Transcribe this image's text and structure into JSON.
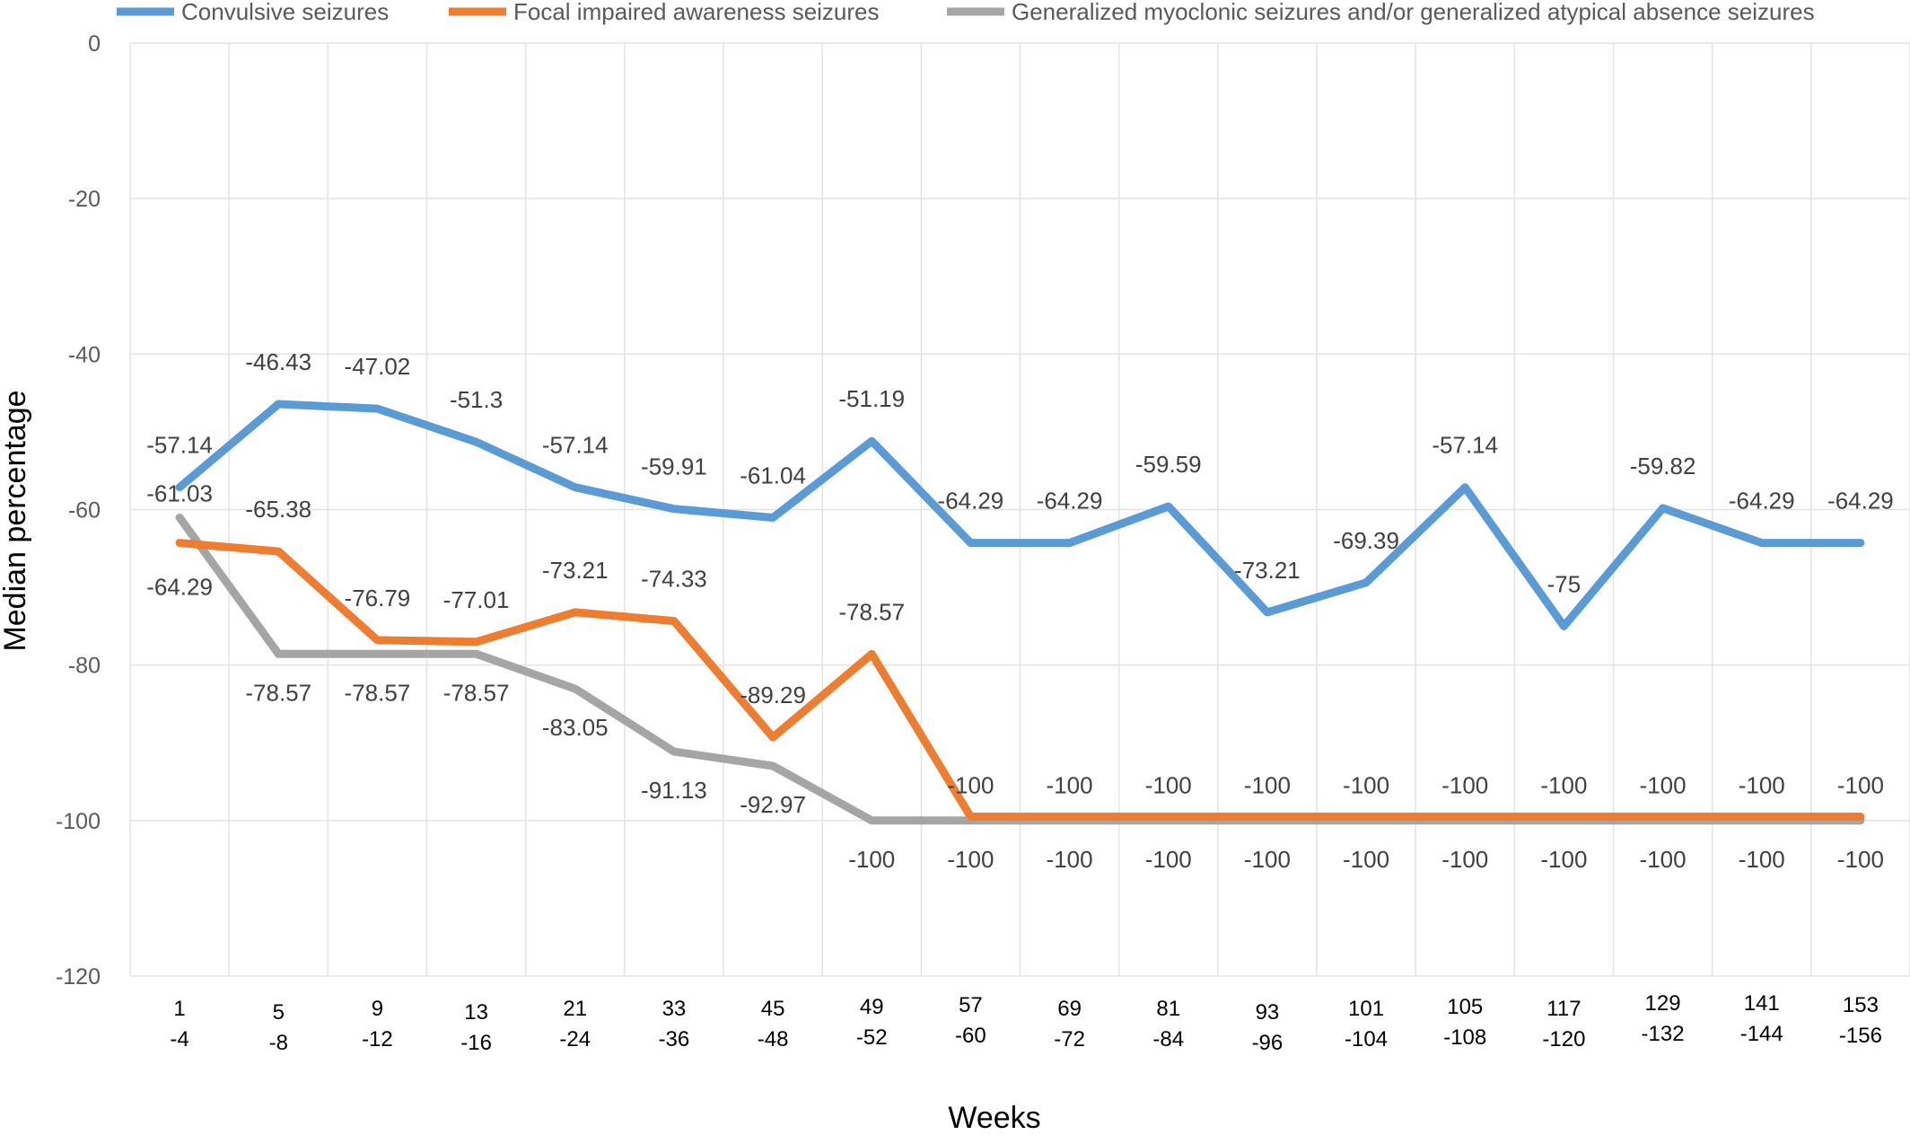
{
  "chart_data": {
    "type": "line",
    "xlabel": "Weeks",
    "ylabel": "Median percentage",
    "ylim": [
      -120,
      0
    ],
    "yticks": [
      0,
      -20,
      -40,
      -60,
      -80,
      -100,
      -120
    ],
    "grid": true,
    "legend_position": "top",
    "categories": [
      [
        "1",
        "-4"
      ],
      [
        "5",
        "-8"
      ],
      [
        "9",
        "-12"
      ],
      [
        "13",
        "-16"
      ],
      [
        "21",
        "-24"
      ],
      [
        "33",
        "-36"
      ],
      [
        "45",
        "-48"
      ],
      [
        "49",
        "-52"
      ],
      [
        "57",
        "-60"
      ],
      [
        "69",
        "-72"
      ],
      [
        "81",
        "-84"
      ],
      [
        "93",
        "-96"
      ],
      [
        "101",
        "-104"
      ],
      [
        "105",
        "-108"
      ],
      [
        "117",
        "-120"
      ],
      [
        "129",
        "-132"
      ],
      [
        "141",
        "-144"
      ],
      [
        "153",
        "-156"
      ]
    ],
    "series": [
      {
        "name": "Convulsive seizures",
        "color": "#5B9BD5",
        "values": [
          -57.14,
          -46.43,
          -47.02,
          -51.3,
          -57.14,
          -59.91,
          -61.04,
          -51.19,
          -64.29,
          -64.29,
          -59.59,
          -73.21,
          -69.39,
          -57.14,
          -75,
          -59.82,
          -64.29,
          -64.29
        ],
        "labels": [
          "-57.14",
          "-46.43",
          "-47.02",
          "-51.3",
          "-57.14",
          "-59.91",
          "-61.04",
          "-51.19",
          "-64.29",
          "-64.29",
          "-59.59",
          "-73.21",
          "-69.39",
          "-57.14",
          "-75",
          "-59.82",
          "-64.29",
          "-64.29"
        ]
      },
      {
        "name": "Focal impaired awareness seizures",
        "color": "#ED7D31",
        "values": [
          -64.29,
          -65.38,
          -76.79,
          -77.01,
          -73.21,
          -74.33,
          -89.29,
          -78.57,
          -99.5,
          -99.5,
          -99.5,
          -99.5,
          -99.5,
          -99.5,
          -99.5,
          -99.5,
          -99.5,
          -99.5
        ],
        "labels": [
          "-64.29",
          "-65.38",
          "-76.79",
          "-77.01",
          "-73.21",
          "-74.33",
          "-89.29",
          "-78.57",
          "-100",
          "-100",
          "-100",
          "-100",
          "-100",
          "-100",
          "-100",
          "-100",
          "-100",
          "-100"
        ]
      },
      {
        "name": "Generalized myoclonic seizures and/or generalized atypical absence seizures",
        "color": "#A5A5A5",
        "values": [
          -61.03,
          -78.57,
          -78.57,
          -78.57,
          -83.05,
          -91.13,
          -92.97,
          -100,
          -100,
          -100,
          -100,
          -100,
          -100,
          -100,
          -100,
          -100,
          -100,
          -100
        ],
        "labels": [
          "-61.03",
          "-78.57",
          "-78.57",
          "-78.57",
          "-83.05",
          "-91.13",
          "-92.97",
          "-100",
          "-100",
          "-100",
          "-100",
          "-100",
          "-100",
          "-100",
          "-100",
          "-100",
          "-100",
          "-100"
        ]
      }
    ]
  }
}
